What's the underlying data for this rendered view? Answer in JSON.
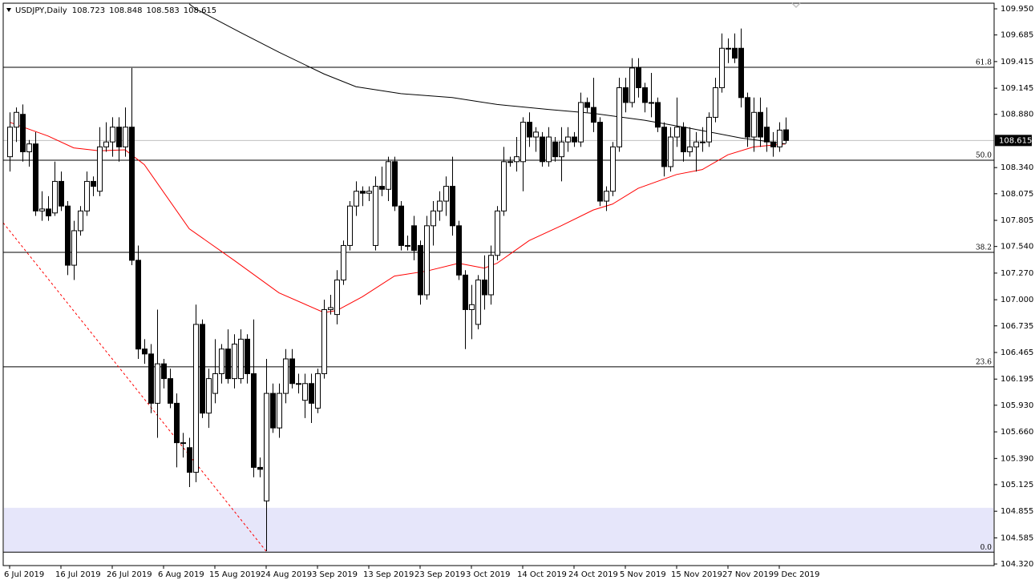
{
  "chart_data": {
    "type": "candlestick",
    "symbol": "USDJPY,Daily",
    "categories": [
      "6 Jul 2019",
      null,
      null,
      null,
      null,
      null,
      null,
      null,
      "16 Jul 2019",
      null,
      null,
      null,
      null,
      null,
      null,
      null,
      "26 Jul 2019",
      null,
      null,
      null,
      null,
      null,
      null,
      null,
      "6 Aug 2019",
      null,
      null,
      null,
      null,
      null,
      null,
      null,
      "15 Aug 2019",
      null,
      null,
      null,
      null,
      null,
      null,
      null,
      "24 Aug 2019",
      null,
      null,
      null,
      null,
      null,
      null,
      null,
      "3 Sep 2019",
      null,
      null,
      null,
      null,
      null,
      null,
      null,
      "13 Sep 2019",
      null,
      null,
      null,
      null,
      null,
      null,
      null,
      "23 Sep 2019",
      null,
      null,
      null,
      null,
      null,
      null,
      null,
      "3 Oct 2019",
      null,
      null,
      null,
      null,
      null,
      null,
      null,
      "14 Oct 2019",
      null,
      null,
      null,
      null,
      null,
      null,
      null,
      "24 Oct 2019",
      null,
      null,
      null,
      null,
      null,
      null,
      null,
      "5 Nov 2019",
      null,
      null,
      null,
      null,
      null,
      null,
      null,
      "15 Nov 2019",
      null,
      null,
      null,
      null,
      null,
      null,
      null,
      "27 Nov 2019",
      null,
      null,
      null,
      null,
      null,
      null,
      null,
      "9 Dec 2019",
      null
    ],
    "open": [
      108.45,
      108.75,
      108.88,
      108.5,
      108.58,
      107.9,
      107.92,
      107.88,
      108.2,
      107.95,
      107.35,
      107.7,
      107.9,
      108.2,
      108.1,
      108.55,
      108.6,
      108.75,
      108.55,
      108.75,
      107.4,
      106.5,
      106.45,
      105.95,
      106.35,
      106.2,
      105.95,
      105.55,
      105.5,
      105.25,
      106.75,
      105.85,
      106.05,
      106.25,
      106.5,
      106.2,
      106.2,
      106.6,
      106.25,
      105.3,
      104.96,
      106.05,
      105.7,
      106.05,
      106.4,
      106.15,
      105.98,
      106.15,
      105.9,
      106.25,
      106.9,
      106.85,
      107.2,
      107.55,
      107.95,
      108.1,
      108.08,
      107.55,
      108.15,
      108.12,
      108.4,
      107.95,
      107.55,
      107.75,
      107.55,
      107.05,
      107.75,
      107.9,
      108.0,
      108.15,
      107.75,
      107.25,
      106.9,
      106.75,
      107.2,
      107.05,
      107.45,
      107.9,
      108.4,
      108.4,
      108.4,
      108.8,
      108.65,
      108.65,
      108.4,
      108.6,
      108.45,
      108.6,
      108.65,
      108.6,
      109.0,
      108.95,
      108.8,
      108.0,
      108.1,
      108.55,
      109.15,
      109.0,
      109.35,
      109.15,
      109.0,
      109.0,
      108.75,
      108.35,
      108.65,
      108.75,
      108.5,
      108.55,
      108.6,
      108.6,
      108.85,
      109.15,
      109.55,
      109.55,
      109.55,
      109.05,
      108.65,
      108.9,
      108.75,
      108.6,
      108.55,
      108.723
    ],
    "high": [
      108.9,
      108.95,
      108.98,
      108.62,
      108.7,
      108.1,
      108.05,
      108.4,
      108.3,
      108.0,
      107.8,
      107.95,
      108.3,
      108.25,
      108.75,
      108.8,
      108.85,
      108.85,
      108.95,
      109.35,
      107.55,
      106.6,
      106.55,
      106.9,
      106.4,
      106.3,
      106.05,
      105.65,
      105.6,
      106.95,
      106.8,
      106.3,
      106.6,
      106.55,
      106.7,
      106.65,
      106.7,
      106.65,
      106.8,
      105.4,
      106.4,
      106.15,
      106.15,
      106.5,
      106.5,
      106.25,
      106.25,
      106.25,
      106.3,
      107.0,
      107.05,
      107.3,
      107.6,
      108.0,
      108.2,
      108.15,
      108.15,
      108.25,
      108.35,
      108.45,
      108.45,
      108.0,
      107.65,
      107.85,
      107.6,
      107.85,
      108.0,
      108.1,
      108.25,
      108.45,
      107.8,
      107.3,
      107.15,
      107.25,
      107.45,
      107.55,
      107.95,
      108.55,
      108.45,
      108.65,
      108.85,
      108.9,
      108.75,
      108.7,
      108.75,
      108.65,
      108.75,
      108.75,
      108.7,
      109.1,
      109.05,
      109.25,
      108.85,
      108.15,
      108.6,
      109.25,
      109.25,
      109.45,
      109.45,
      109.2,
      109.3,
      109.05,
      108.8,
      108.75,
      109.05,
      108.8,
      108.75,
      108.7,
      108.75,
      108.9,
      109.25,
      109.7,
      109.65,
      109.7,
      109.75,
      109.1,
      109.05,
      109.05,
      108.95,
      108.7,
      108.8,
      108.848
    ],
    "low": [
      108.3,
      108.6,
      108.4,
      108.35,
      107.85,
      107.8,
      107.8,
      107.85,
      107.9,
      107.25,
      107.2,
      107.65,
      107.85,
      108.05,
      108.05,
      108.5,
      108.45,
      108.4,
      108.45,
      107.35,
      106.4,
      106.35,
      105.85,
      105.6,
      106.1,
      105.9,
      105.3,
      105.4,
      105.1,
      105.15,
      105.8,
      105.7,
      105.95,
      106.15,
      106.15,
      106.1,
      106.15,
      106.15,
      105.2,
      105.2,
      104.45,
      105.65,
      105.6,
      105.95,
      106.1,
      106.05,
      105.8,
      105.75,
      105.85,
      106.2,
      106.85,
      106.75,
      107.15,
      107.5,
      107.85,
      107.95,
      108.0,
      107.5,
      108.05,
      108.0,
      107.9,
      107.5,
      107.5,
      107.4,
      106.95,
      107.0,
      107.55,
      107.8,
      107.85,
      107.65,
      107.2,
      106.5,
      106.6,
      106.7,
      106.9,
      106.95,
      107.4,
      107.85,
      108.35,
      108.3,
      108.1,
      108.55,
      108.5,
      108.35,
      108.35,
      108.4,
      108.2,
      108.5,
      108.55,
      108.55,
      108.9,
      108.7,
      107.95,
      107.9,
      108.05,
      108.5,
      108.9,
      108.95,
      109.05,
      108.9,
      108.85,
      108.7,
      108.25,
      108.3,
      108.55,
      108.4,
      108.45,
      108.3,
      108.5,
      108.55,
      108.8,
      109.1,
      109.4,
      109.4,
      108.95,
      108.55,
      108.5,
      108.55,
      108.5,
      108.45,
      108.5,
      108.583
    ],
    "close": [
      108.75,
      108.9,
      108.5,
      108.58,
      107.9,
      107.92,
      107.85,
      108.2,
      107.95,
      107.35,
      107.7,
      107.9,
      108.2,
      108.15,
      108.55,
      108.6,
      108.75,
      108.55,
      108.75,
      107.4,
      106.5,
      106.45,
      105.95,
      106.35,
      106.2,
      105.95,
      105.55,
      105.55,
      105.25,
      106.75,
      105.85,
      106.2,
      106.25,
      106.5,
      106.2,
      106.55,
      106.6,
      106.25,
      105.3,
      105.28,
      106.05,
      105.7,
      106.05,
      106.4,
      106.15,
      106.15,
      106.15,
      105.95,
      106.25,
      106.9,
      106.92,
      107.2,
      107.55,
      107.95,
      108.1,
      108.08,
      108.1,
      108.15,
      108.12,
      108.4,
      107.95,
      107.55,
      107.55,
      107.5,
      107.05,
      107.75,
      107.9,
      108.0,
      108.15,
      107.75,
      107.25,
      106.9,
      106.95,
      107.2,
      107.05,
      107.45,
      107.9,
      108.4,
      108.4,
      108.45,
      108.8,
      108.65,
      108.7,
      108.4,
      108.65,
      108.45,
      108.6,
      108.65,
      108.6,
      109.0,
      108.95,
      108.8,
      108.0,
      108.1,
      108.55,
      109.15,
      109.0,
      109.35,
      109.15,
      109.0,
      109.0,
      108.75,
      108.35,
      108.65,
      108.75,
      108.5,
      108.55,
      108.6,
      108.6,
      108.85,
      109.15,
      109.55,
      109.55,
      109.45,
      109.05,
      108.65,
      108.9,
      108.65,
      108.6,
      108.55,
      108.72,
      108.615
    ],
    "up_color": "#ffffff",
    "down_color": "#000000",
    "moving_averages": [
      {
        "color": "#ff0000",
        "x": [
          0,
          6,
          10,
          14,
          18,
          21,
          28,
          35,
          42,
          49,
          51,
          55,
          60,
          65,
          70,
          74,
          76,
          81,
          86,
          91,
          94,
          98,
          104,
          108,
          112,
          116,
          121
        ],
        "values": [
          108.8,
          108.66,
          108.54,
          108.51,
          108.52,
          108.37,
          107.72,
          107.4,
          107.07,
          106.87,
          106.89,
          107.03,
          107.24,
          107.29,
          107.37,
          107.32,
          107.37,
          107.6,
          107.75,
          107.91,
          107.97,
          108.13,
          108.27,
          108.32,
          108.47,
          108.55,
          108.58
        ]
      },
      {
        "color": "#000000",
        "x": [
          28,
          29,
          36,
          42,
          49,
          54,
          61,
          69,
          76,
          84,
          91,
          99,
          106,
          114,
          121
        ],
        "values": [
          110.0,
          109.95,
          109.71,
          109.51,
          109.29,
          109.16,
          109.09,
          109.05,
          108.98,
          108.93,
          108.89,
          108.82,
          108.74,
          108.64,
          108.58
        ]
      }
    ],
    "trendline": {
      "color": "#ff0000",
      "x": [
        -1,
        40
      ],
      "values": [
        107.78,
        104.45
      ]
    },
    "fib_levels": [
      {
        "label": "61.8",
        "price": 109.357
      },
      {
        "label": "50.0",
        "price": 108.415
      },
      {
        "label": "38.2",
        "price": 107.48
      },
      {
        "label": "23.6",
        "price": 106.32
      },
      {
        "label": "0.0",
        "price": 104.44
      }
    ],
    "zone": {
      "from": 104.44,
      "to": 104.89,
      "color": "#e6e6fa"
    },
    "ylim": [
      104.304,
      110.007
    ],
    "yticks": [
      {
        "value": 109.95,
        "label": "109.950"
      },
      109.685,
      109.415,
      109.145,
      {
        "value": 108.88,
        "label": "108.880"
      },
      {
        "value": 108.34,
        "label": "108.340"
      },
      108.075,
      107.805,
      {
        "value": 107.54,
        "label": "107.540"
      },
      {
        "value": 107.27,
        "label": "107.270"
      },
      {
        "value": 107.0,
        "label": "107.000"
      },
      106.735,
      106.465,
      106.195,
      {
        "value": 105.93,
        "label": "105.930"
      },
      {
        "value": 105.66,
        "label": "105.660"
      },
      {
        "value": 105.39,
        "label": "105.390"
      },
      105.125,
      104.855,
      104.585,
      {
        "value": 104.32,
        "label": "104.320"
      }
    ]
  }
}
